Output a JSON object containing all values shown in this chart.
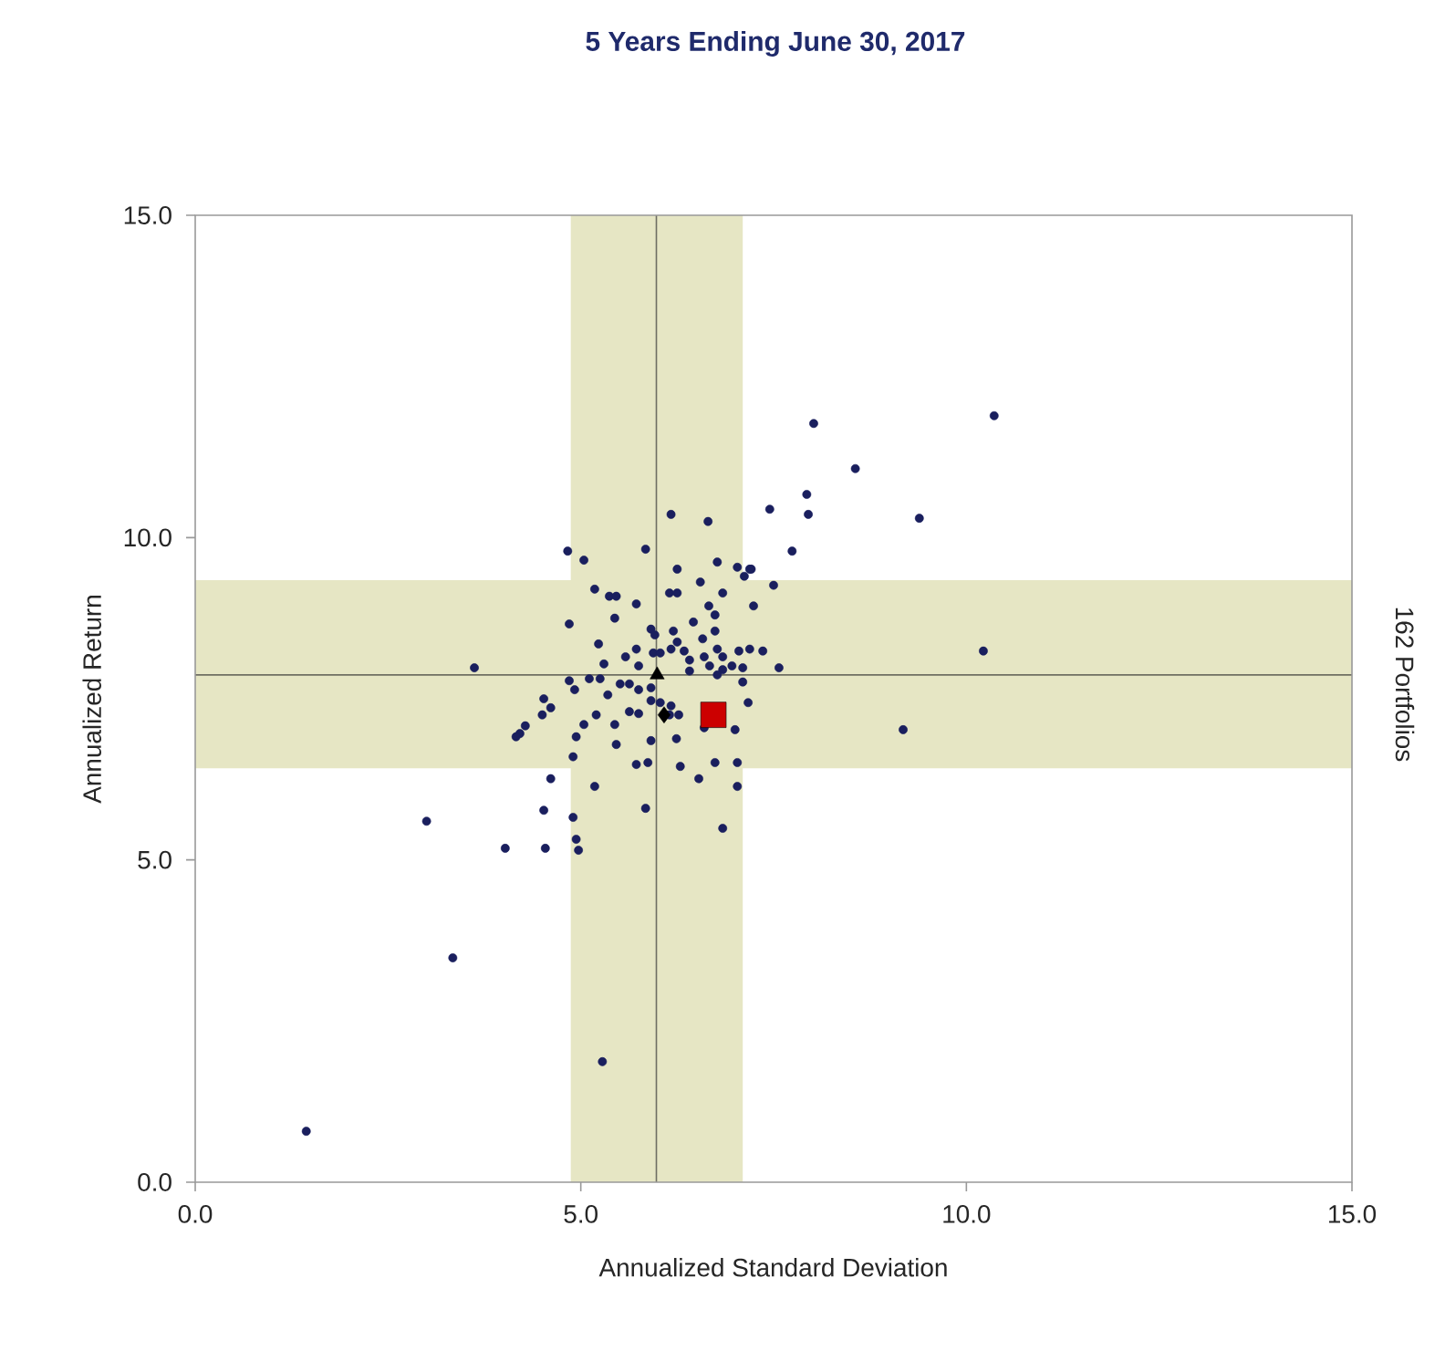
{
  "chart_data": {
    "type": "scatter",
    "title": "5 Years Ending June 30, 2017",
    "xlabel": "Annualized Standard Deviation",
    "ylabel": "Annualized Return",
    "annotations": [
      "162 Portfolios"
    ],
    "xlim": [
      0,
      15
    ],
    "ylim": [
      0,
      15
    ],
    "xticks": [
      {
        "value": 0,
        "label": "0.0"
      },
      {
        "value": 5,
        "label": "5.0"
      },
      {
        "value": 10,
        "label": "10.0"
      },
      {
        "value": 15,
        "label": "15.0"
      }
    ],
    "yticks": [
      {
        "value": 0,
        "label": "0.0"
      },
      {
        "value": 5,
        "label": "5.0"
      },
      {
        "value": 10,
        "label": "10.0"
      },
      {
        "value": 15,
        "label": "15.0"
      }
    ],
    "grid": false,
    "bands": [
      {
        "axis": "x",
        "from": 4.87,
        "to": 7.1,
        "color": "#e6e6c4"
      },
      {
        "axis": "y",
        "from": 6.42,
        "to": 9.34,
        "color": "#e6e6c4"
      }
    ],
    "ref_lines": [
      {
        "axis": "x",
        "value": 5.98,
        "color": "#6e6e62"
      },
      {
        "axis": "y",
        "value": 7.87,
        "color": "#6e6e62"
      }
    ],
    "series": [
      {
        "color": "#1a1f5e",
        "marker": "circle",
        "x": [
          10.36,
          8.02,
          8.56,
          9.39,
          10.22,
          9.18,
          7.93,
          7.95,
          7.74,
          7.45,
          7.21,
          7.12,
          6.65,
          6.17,
          5.84,
          4.83,
          5.04,
          6.25,
          6.77,
          7.03,
          7.19,
          7.5,
          7.24,
          3.62,
          5.18,
          5.37,
          5.46,
          5.72,
          5.91,
          6.15,
          6.25,
          6.55,
          6.84,
          6.66,
          6.74,
          4.85,
          5.44,
          5.72,
          6.2,
          6.25,
          6.46,
          6.58,
          6.74,
          6.77,
          7.19,
          7.36,
          7.57,
          5.96,
          5.94,
          6.17,
          5.23,
          5.3,
          5.58,
          5.75,
          6.03,
          6.34,
          6.41,
          6.6,
          6.67,
          6.84,
          7.05,
          6.84,
          6.96,
          7.1,
          7.1,
          6.77,
          6.41,
          5.91,
          5.63,
          5.25,
          4.85,
          4.92,
          4.52,
          4.61,
          4.5,
          4.28,
          4.21,
          4.16,
          5.11,
          5.35,
          5.51,
          5.75,
          5.63,
          5.2,
          5.04,
          4.94,
          5.44,
          5.75,
          5.91,
          6.03,
          6.17,
          6.27,
          6.15,
          5.91,
          6.24,
          6.29,
          5.46,
          5.72,
          4.9,
          4.61,
          5.18,
          4.52,
          4.9,
          4.54,
          4.94,
          4.97,
          3.0,
          4.02,
          5.84,
          5.87,
          6.53,
          6.74,
          7.03,
          7.03,
          6.84,
          7.0,
          7.17,
          3.34,
          5.28,
          1.44,
          6.6
        ],
        "values": [
          11.89,
          11.77,
          11.07,
          10.3,
          8.24,
          7.02,
          10.67,
          10.36,
          9.79,
          10.44,
          9.51,
          9.4,
          10.25,
          10.36,
          9.82,
          9.79,
          9.65,
          9.51,
          9.62,
          9.54,
          9.51,
          9.26,
          8.94,
          7.98,
          9.2,
          9.09,
          9.09,
          8.97,
          8.58,
          9.14,
          9.14,
          9.31,
          9.14,
          8.94,
          8.8,
          8.66,
          8.75,
          8.27,
          8.55,
          8.38,
          8.69,
          8.43,
          8.55,
          8.27,
          8.27,
          8.24,
          7.98,
          8.49,
          8.21,
          8.27,
          8.35,
          8.04,
          8.15,
          8.01,
          8.21,
          8.24,
          8.1,
          8.15,
          8.01,
          8.15,
          8.24,
          7.95,
          8.01,
          7.98,
          7.76,
          7.87,
          7.93,
          7.67,
          7.73,
          7.81,
          7.78,
          7.64,
          7.5,
          7.36,
          7.25,
          7.08,
          6.96,
          6.91,
          7.81,
          7.56,
          7.73,
          7.64,
          7.3,
          7.25,
          7.1,
          6.91,
          7.1,
          7.27,
          7.47,
          7.44,
          7.39,
          7.25,
          7.25,
          6.85,
          6.88,
          6.45,
          6.79,
          6.48,
          6.6,
          6.26,
          6.14,
          5.77,
          5.66,
          5.18,
          5.32,
          5.15,
          5.6,
          5.18,
          5.8,
          6.51,
          6.26,
          6.51,
          6.51,
          6.14,
          5.49,
          7.02,
          7.44,
          3.48,
          1.87,
          0.79,
          7.05
        ]
      },
      {
        "color": "#000000",
        "marker": "triangle",
        "x": [
          5.99
        ],
        "values": [
          7.87
        ]
      },
      {
        "color": "#000000",
        "marker": "diamond",
        "x": [
          6.08
        ],
        "values": [
          7.25
        ]
      },
      {
        "color": "#cc0000",
        "marker": "square",
        "x": [
          6.72
        ],
        "values": [
          7.25
        ]
      }
    ]
  }
}
